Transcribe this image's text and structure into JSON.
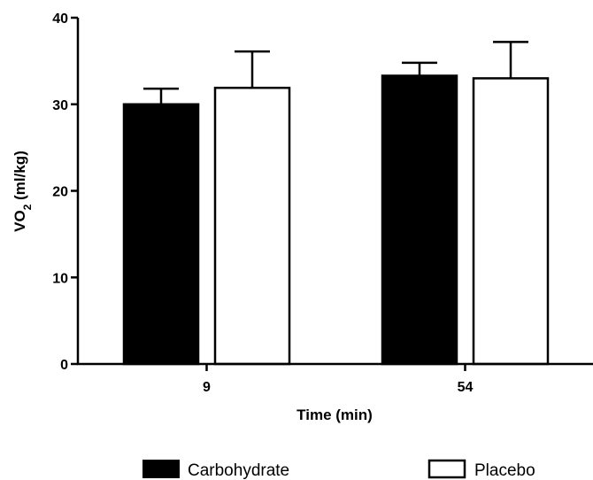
{
  "chart_data": {
    "type": "bar",
    "categories": [
      "9",
      "54"
    ],
    "series": [
      {
        "name": "Carbohydrate",
        "values": [
          30,
          33.3
        ],
        "error": [
          1.8,
          1.5
        ],
        "fill": "#000000"
      },
      {
        "name": "Placebo",
        "values": [
          31.9,
          33
        ],
        "error": [
          4.2,
          4.2
        ],
        "fill": "#ffffff"
      }
    ],
    "ylabel_main": "VO",
    "ylabel_sub": "2",
    "ylabel_unit": " (ml/kg)",
    "xlabel": "Time (min)",
    "ylim": [
      0,
      40
    ],
    "yticks": [
      "0",
      "10",
      "20",
      "30",
      "40"
    ],
    "grid": false,
    "legend": "bottom"
  }
}
